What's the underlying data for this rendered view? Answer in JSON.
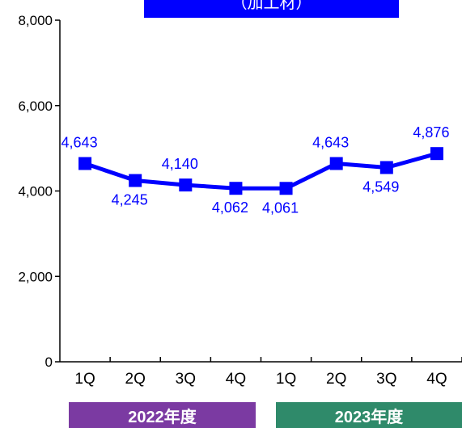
{
  "title": "（加工材）",
  "colors": {
    "line": "#0000ff",
    "title_bg": "#0000ff",
    "label": "#0000ff",
    "year_2022": "#7b3aa2",
    "year_2023": "#2f8a6a",
    "axis": "#000000"
  },
  "years": [
    {
      "label": "2022年度",
      "color": "#7b3aa2"
    },
    {
      "label": "2023年度",
      "color": "#2f8a6a"
    }
  ],
  "chart_data": {
    "type": "line",
    "title": "（加工材）",
    "categories": [
      "1Q",
      "2Q",
      "3Q",
      "4Q",
      "1Q",
      "2Q",
      "3Q",
      "4Q"
    ],
    "series": [
      {
        "values": [
          4643,
          4245,
          4140,
          4062,
          4061,
          4643,
          4549,
          4876
        ],
        "labels": [
          "4,643",
          "4,245",
          "4,140",
          "4,062",
          "4,061",
          "4,643",
          "4,549",
          "4,876"
        ],
        "label_position": [
          "above",
          "below",
          "above",
          "below",
          "below",
          "above",
          "below",
          "above"
        ]
      }
    ],
    "ylim": [
      0,
      8000
    ],
    "yticks": [
      0,
      2000,
      4000,
      6000,
      8000
    ],
    "ytick_labels": [
      "0",
      "2,000",
      "4,000",
      "6,000",
      "8,000"
    ],
    "grid": false,
    "xlabel": "",
    "ylabel": ""
  }
}
